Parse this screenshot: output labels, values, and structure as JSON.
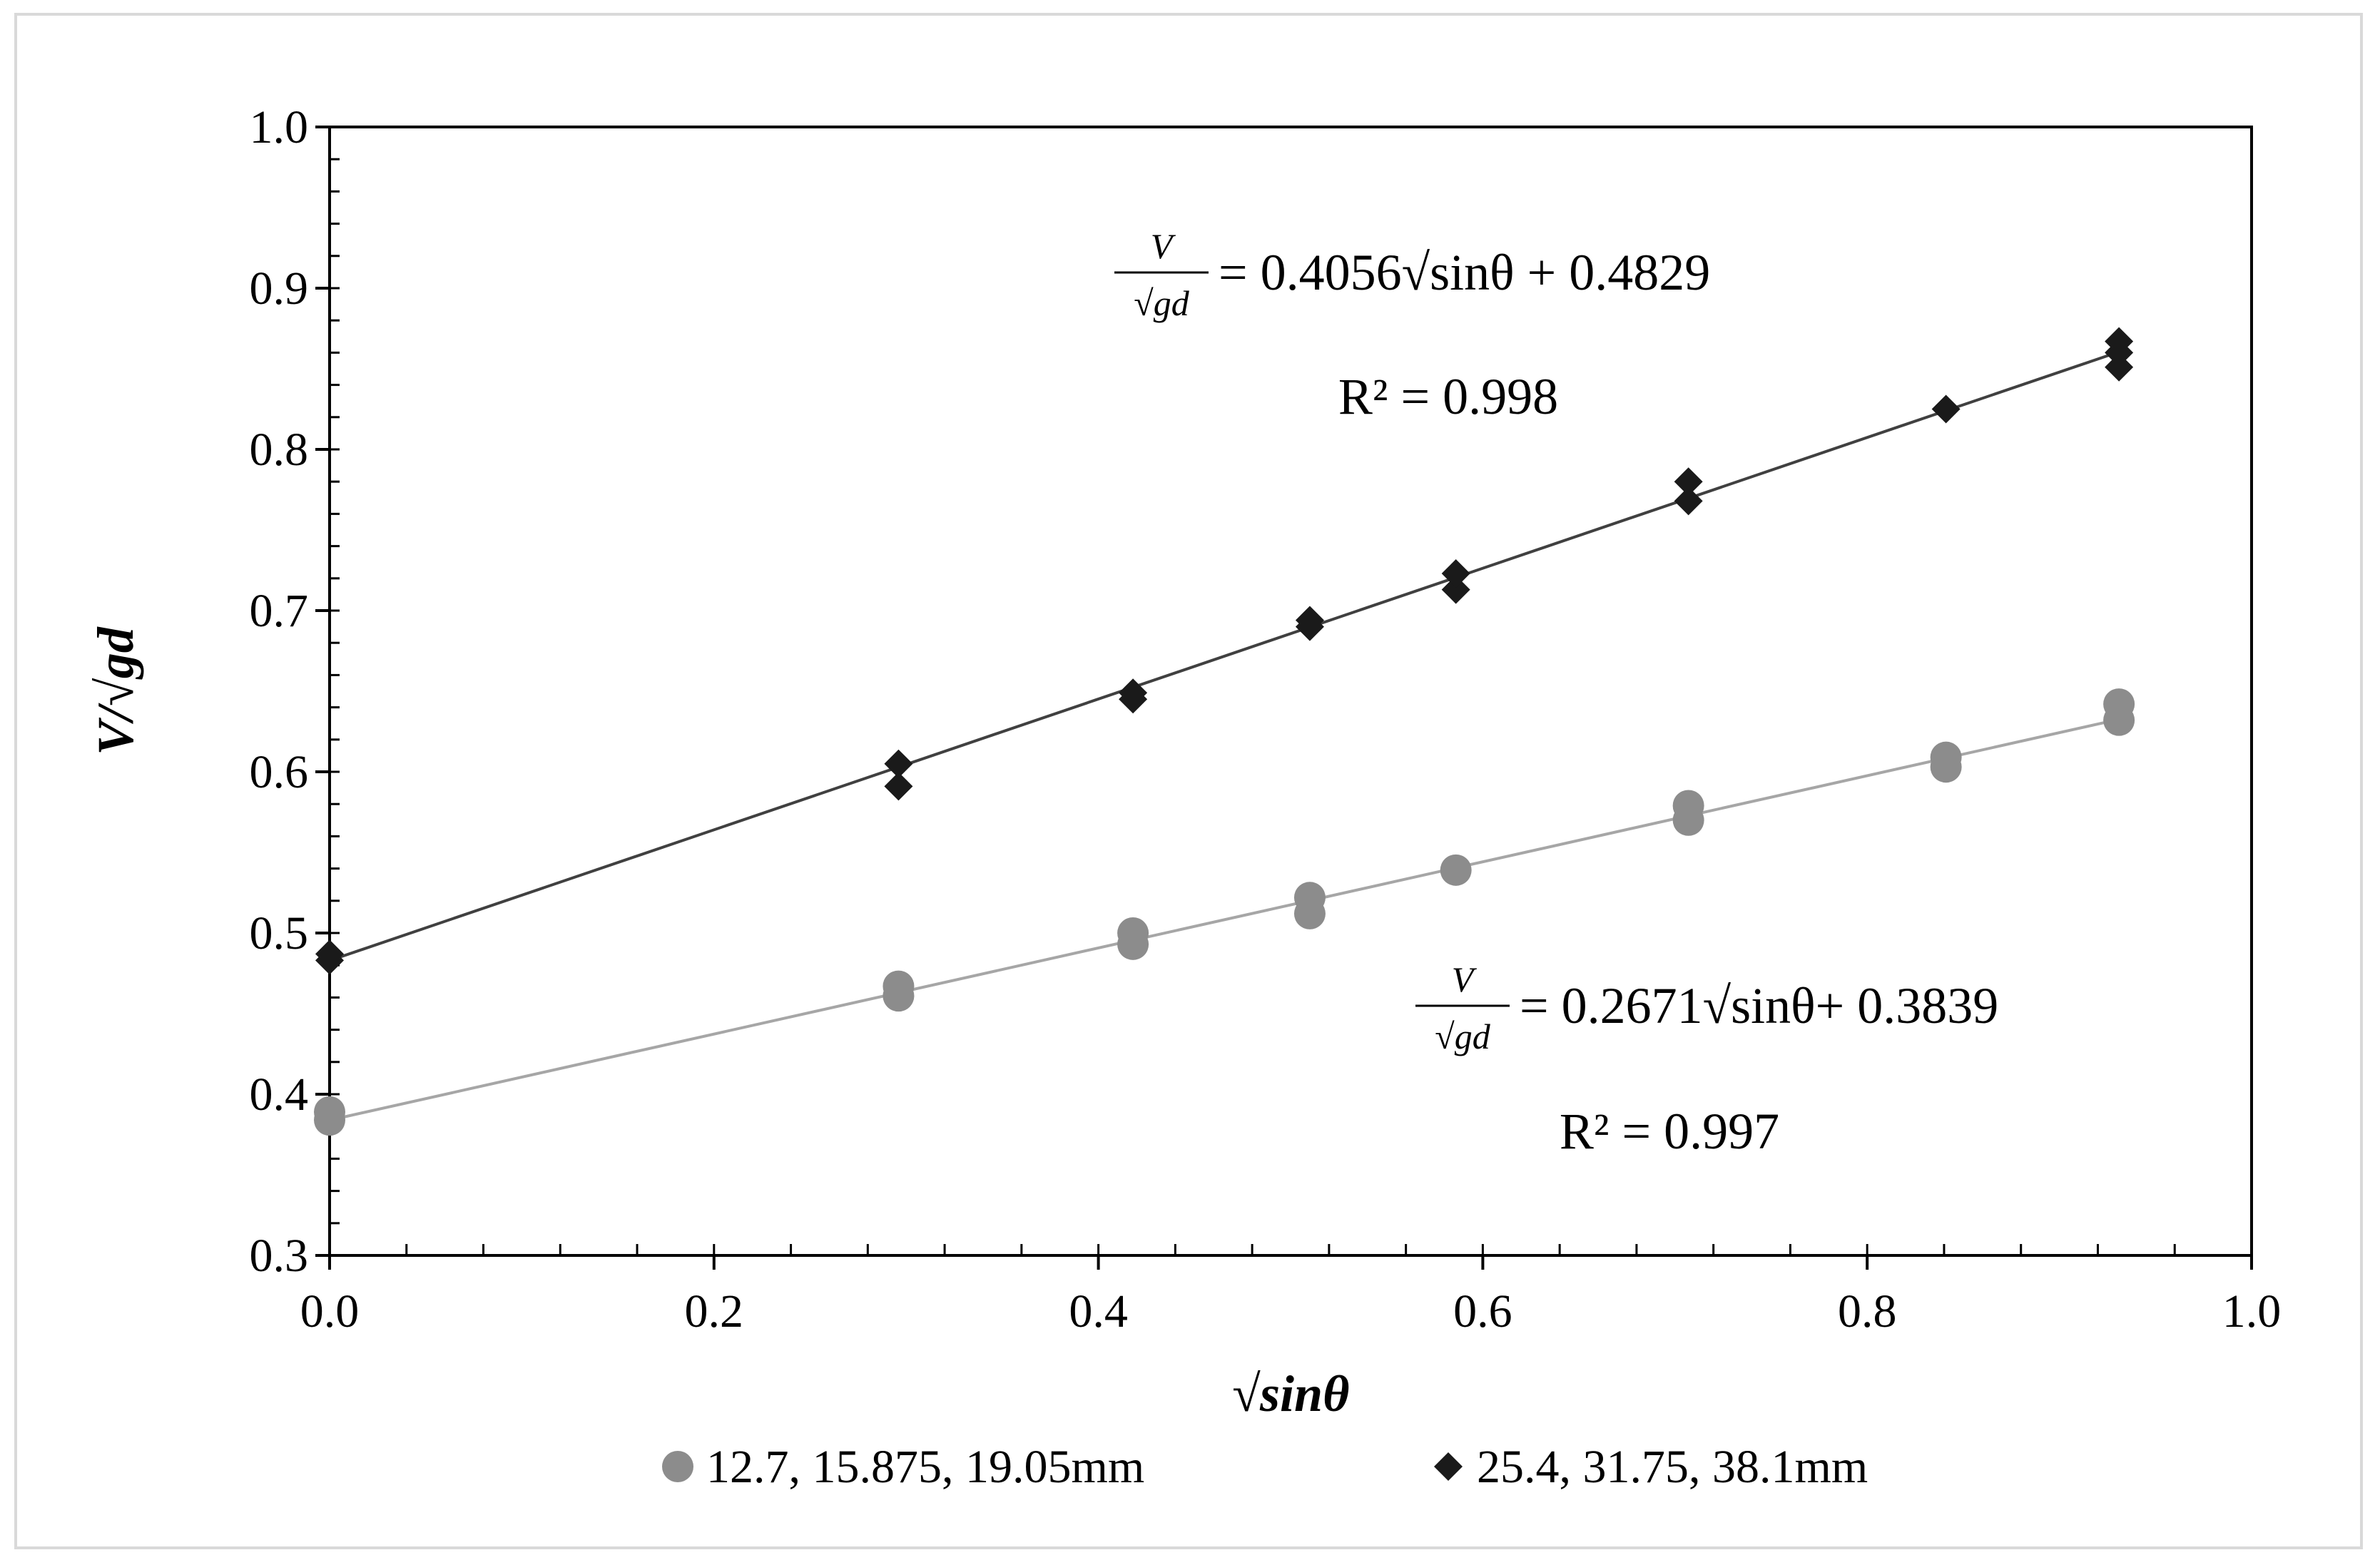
{
  "chart_data": {
    "type": "scatter",
    "xlabel": "√sinθ",
    "ylabel": "V/√gd",
    "xlim": [
      0.0,
      1.0
    ],
    "ylim": [
      0.3,
      1.0
    ],
    "x_ticks": [
      "0.0",
      "0.2",
      "0.4",
      "0.6",
      "0.8",
      "1.0"
    ],
    "y_ticks": [
      "0.3",
      "0.4",
      "0.5",
      "0.6",
      "0.7",
      "0.8",
      "0.9",
      "1.0"
    ],
    "grid": false,
    "legend_position": "bottom",
    "series": [
      {
        "name": "12.7, 15.875, 19.05mm",
        "marker": "circle",
        "color": "#8c8c8c",
        "points": [
          [
            0.0,
            0.384
          ],
          [
            0.0,
            0.389
          ],
          [
            0.296,
            0.461
          ],
          [
            0.296,
            0.467
          ],
          [
            0.418,
            0.493
          ],
          [
            0.418,
            0.5
          ],
          [
            0.51,
            0.512
          ],
          [
            0.51,
            0.522
          ],
          [
            0.586,
            0.539
          ],
          [
            0.707,
            0.57
          ],
          [
            0.707,
            0.579
          ],
          [
            0.841,
            0.603
          ],
          [
            0.841,
            0.609
          ],
          [
            0.931,
            0.632
          ],
          [
            0.931,
            0.642
          ]
        ],
        "trendline": {
          "slope": 0.2671,
          "intercept": 0.3839,
          "color": "#a6a6a6"
        },
        "equation": {
          "lhs_num": "V",
          "lhs_den": "√gd",
          "rhs": "= 0.2671√sinθ+ 0.3839",
          "r2": "R² = 0.997"
        }
      },
      {
        "name": "25.4, 31.75, 38.1mm",
        "marker": "diamond",
        "color": "#1a1a1a",
        "points": [
          [
            0.0,
            0.483
          ],
          [
            0.0,
            0.487
          ],
          [
            0.296,
            0.591
          ],
          [
            0.296,
            0.605
          ],
          [
            0.418,
            0.645
          ],
          [
            0.418,
            0.649
          ],
          [
            0.51,
            0.69
          ],
          [
            0.51,
            0.694
          ],
          [
            0.586,
            0.713
          ],
          [
            0.586,
            0.723
          ],
          [
            0.707,
            0.768
          ],
          [
            0.707,
            0.78
          ],
          [
            0.841,
            0.825
          ],
          [
            0.931,
            0.851
          ],
          [
            0.931,
            0.86
          ],
          [
            0.931,
            0.867
          ]
        ],
        "trendline": {
          "slope": 0.4056,
          "intercept": 0.4829,
          "color": "#404040"
        },
        "equation": {
          "lhs_num": "V",
          "lhs_den": "√gd",
          "rhs": "= 0.4056√sinθ + 0.4829",
          "r2": "R² = 0.998"
        }
      }
    ]
  }
}
